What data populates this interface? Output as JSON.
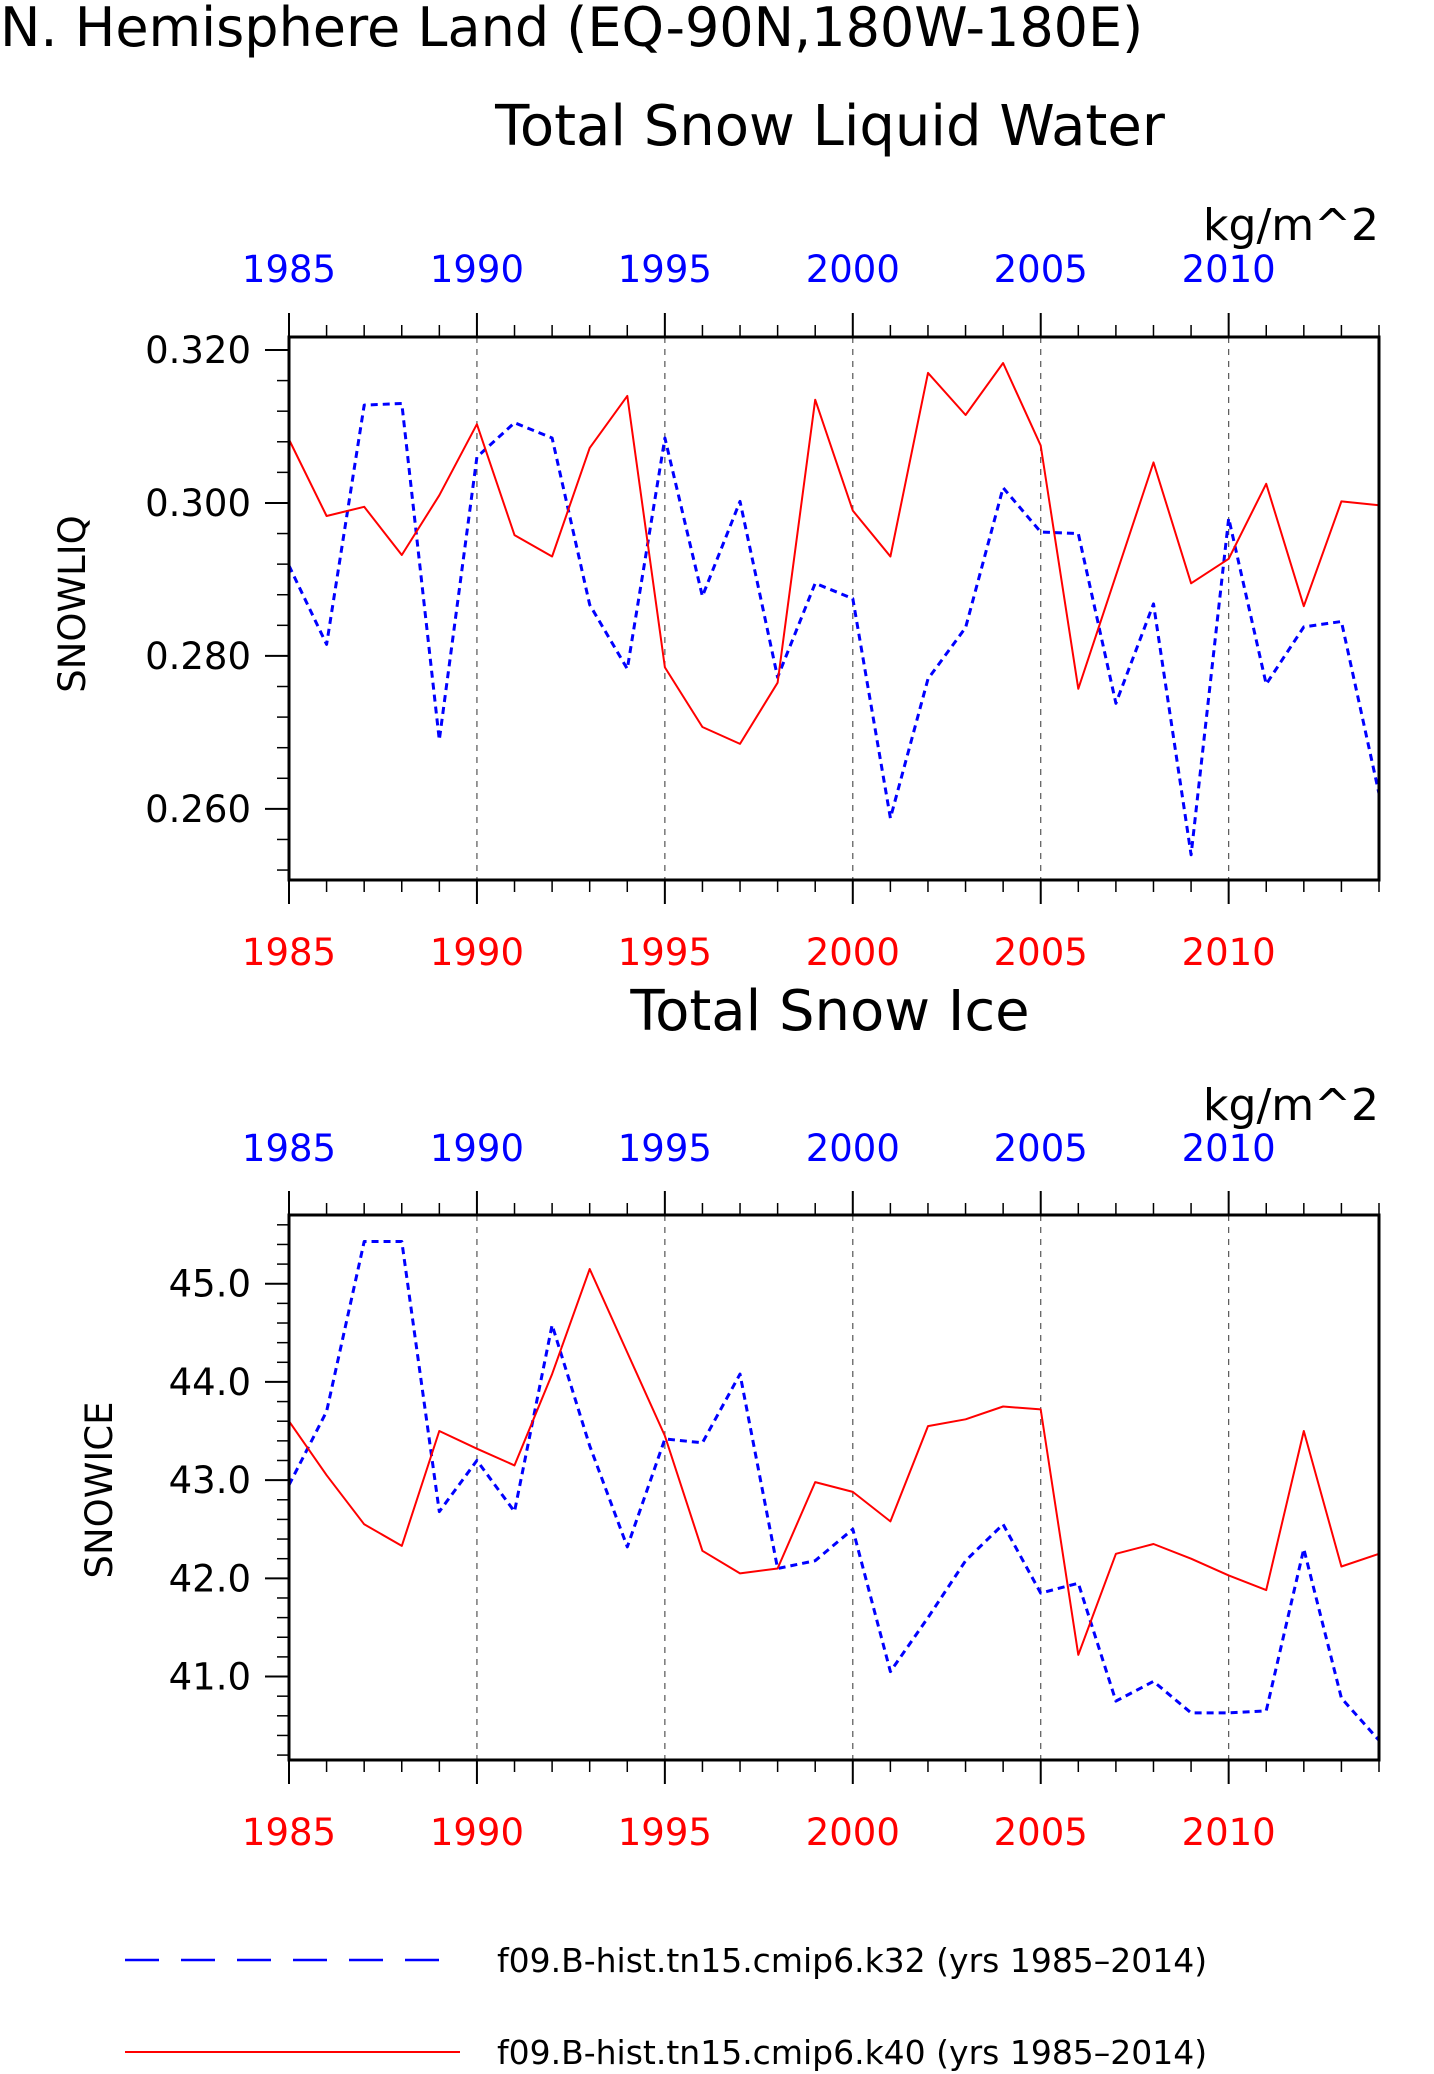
{
  "title": "N. Hemisphere Land (EQ-90N,180W-180E)",
  "colors": {
    "k32": "#0000ff",
    "k40": "#ff0000",
    "axis": "#000000",
    "grid": "#555555"
  },
  "chart_data": [
    {
      "type": "line",
      "title": "Total Snow Liquid Water",
      "ylabel": "SNOWLIQ",
      "units": "kg/m^2",
      "ylim": [
        0.2507,
        0.3217
      ],
      "xlim": [
        1985,
        2014
      ],
      "yticks": [
        "0.260",
        "0.280",
        "0.300",
        "0.320"
      ],
      "ytick_values": [
        0.26,
        0.28,
        0.3,
        0.32
      ],
      "xticks_top": [
        "1985",
        "1990",
        "1995",
        "2000",
        "2005",
        "2010"
      ],
      "xticks_bottom": [
        "1985",
        "1990",
        "1995",
        "2000",
        "2005",
        "2010"
      ],
      "xtick_values": [
        1985,
        1990,
        1995,
        2000,
        2005,
        2010
      ],
      "grid": "vertical dashed at major x ticks",
      "x": [
        1985,
        1986,
        1987,
        1988,
        1989,
        1990,
        1991,
        1992,
        1993,
        1994,
        1995,
        1996,
        1997,
        1998,
        1999,
        2000,
        2001,
        2002,
        2003,
        2004,
        2005,
        2006,
        2007,
        2008,
        2009,
        2010,
        2011,
        2012,
        2013,
        2014
      ],
      "series": [
        {
          "name": "f09.B-hist.tn15.cmip6.k32 (yrs 1985-2014)",
          "style": "dashed",
          "color": "blue",
          "values": [
            0.2918,
            0.2815,
            0.3128,
            0.313,
            0.269,
            0.306,
            0.3105,
            0.3085,
            0.2867,
            0.2783,
            0.3085,
            0.2878,
            0.3002,
            0.2772,
            0.2895,
            0.2875,
            0.2588,
            0.277,
            0.2837,
            0.302,
            0.2962,
            0.296,
            0.2738,
            0.2868,
            0.254,
            0.298,
            0.2763,
            0.2838,
            0.2845,
            0.262
          ]
        },
        {
          "name": "f09.B-hist.tn15.cmip6.k40 (yrs 1985-2014)",
          "style": "solid",
          "color": "red",
          "values": [
            0.3083,
            0.2983,
            0.2995,
            0.2932,
            0.301,
            0.3103,
            0.2958,
            0.293,
            0.3072,
            0.314,
            0.2785,
            0.2707,
            0.2685,
            0.2765,
            0.3135,
            0.299,
            0.293,
            0.317,
            0.3115,
            0.3183,
            0.3075,
            0.2757,
            0.2905,
            0.3053,
            0.2895,
            0.2927,
            0.3025,
            0.2865,
            0.3002,
            0.2997
          ]
        }
      ]
    },
    {
      "type": "line",
      "title": "Total Snow Ice",
      "ylabel": "SNOWICE",
      "units": "kg/m^2",
      "ylim": [
        40.15,
        45.7
      ],
      "xlim": [
        1985,
        2014
      ],
      "yticks": [
        "41.0",
        "42.0",
        "43.0",
        "44.0",
        "45.0"
      ],
      "ytick_values": [
        41.0,
        42.0,
        43.0,
        44.0,
        45.0
      ],
      "xticks_top": [
        "1985",
        "1990",
        "1995",
        "2000",
        "2005",
        "2010"
      ],
      "xticks_bottom": [
        "1985",
        "1990",
        "1995",
        "2000",
        "2005",
        "2010"
      ],
      "xtick_values": [
        1985,
        1990,
        1995,
        2000,
        2005,
        2010
      ],
      "grid": "vertical dashed at major x ticks",
      "x": [
        1985,
        1986,
        1987,
        1988,
        1989,
        1990,
        1991,
        1992,
        1993,
        1994,
        1995,
        1996,
        1997,
        1998,
        1999,
        2000,
        2001,
        2002,
        2003,
        2004,
        2005,
        2006,
        2007,
        2008,
        2009,
        2010,
        2011,
        2012,
        2013,
        2014
      ],
      "series": [
        {
          "name": "f09.B-hist.tn15.cmip6.k32 (yrs 1985-2014)",
          "style": "dashed",
          "color": "blue",
          "values": [
            42.95,
            43.7,
            45.43,
            45.43,
            42.68,
            43.2,
            42.68,
            44.58,
            43.35,
            42.32,
            43.42,
            43.38,
            44.08,
            42.1,
            42.18,
            42.5,
            41.05,
            41.6,
            42.18,
            42.55,
            41.85,
            41.95,
            40.75,
            40.95,
            40.63,
            40.63,
            40.65,
            42.3,
            40.78,
            40.35
          ]
        },
        {
          "name": "f09.B-hist.tn15.cmip6.k40 (yrs 1985-2014)",
          "style": "solid",
          "color": "red",
          "values": [
            43.6,
            43.05,
            42.55,
            42.33,
            43.5,
            43.32,
            43.15,
            44.08,
            45.15,
            44.3,
            43.45,
            42.28,
            42.05,
            42.1,
            42.98,
            42.88,
            42.58,
            43.55,
            43.62,
            43.75,
            43.72,
            41.22,
            42.25,
            42.35,
            42.2,
            42.03,
            41.88,
            43.5,
            42.12,
            42.25
          ]
        }
      ]
    }
  ],
  "legend": [
    {
      "label": "f09.B-hist.tn15.cmip6.k32 (yrs 1985–2014)",
      "style": "dashed",
      "color": "blue"
    },
    {
      "label": "f09.B-hist.tn15.cmip6.k40 (yrs 1985–2014)",
      "style": "solid",
      "color": "red"
    }
  ]
}
